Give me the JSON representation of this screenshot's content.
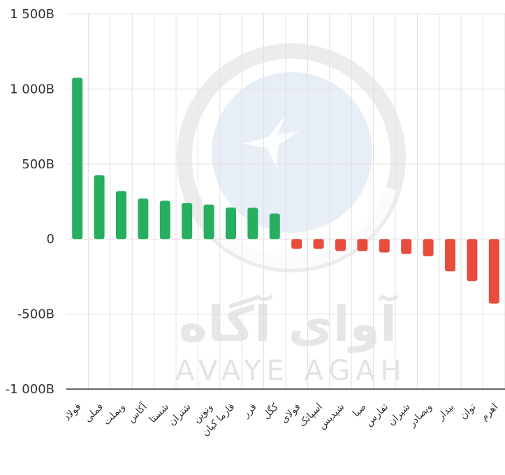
{
  "chart_data": {
    "type": "bar",
    "title": "",
    "xlabel": "",
    "ylabel": "",
    "ylim": [
      -1000,
      1500
    ],
    "yticks": [
      {
        "value": 1500,
        "label": "1 500B"
      },
      {
        "value": 1000,
        "label": "1 000B"
      },
      {
        "value": 500,
        "label": "500B"
      },
      {
        "value": 0,
        "label": "0"
      },
      {
        "value": -500,
        "label": "-500B"
      },
      {
        "value": -1000,
        "label": "-1 000B"
      }
    ],
    "categories": [
      "فولاد",
      "فملی",
      "وبملت",
      "آکاس",
      "شستا",
      "شتران",
      "ونوین",
      "فارما کیان",
      "فرر",
      "کگل",
      "فولای",
      "اسپاتک",
      "شپدیس",
      "صبا",
      "ثفارس",
      "شیران",
      "وبصادر",
      "بیدار",
      "توان",
      "اهرم"
    ],
    "values": [
      1075,
      425,
      320,
      270,
      255,
      240,
      230,
      210,
      208,
      170,
      -65,
      -65,
      -80,
      -80,
      -90,
      -100,
      -115,
      -215,
      -280,
      -430
    ],
    "grid": true,
    "legend": "none",
    "colors": {
      "positive": "#27ae60",
      "negative": "#e74c3c",
      "grid": "#e0e0e0",
      "axis": "#333333",
      "label": "#333333"
    }
  },
  "watermark": {
    "text_fa": "آوای آگاه",
    "text_en": "AVAYE AGAH"
  }
}
